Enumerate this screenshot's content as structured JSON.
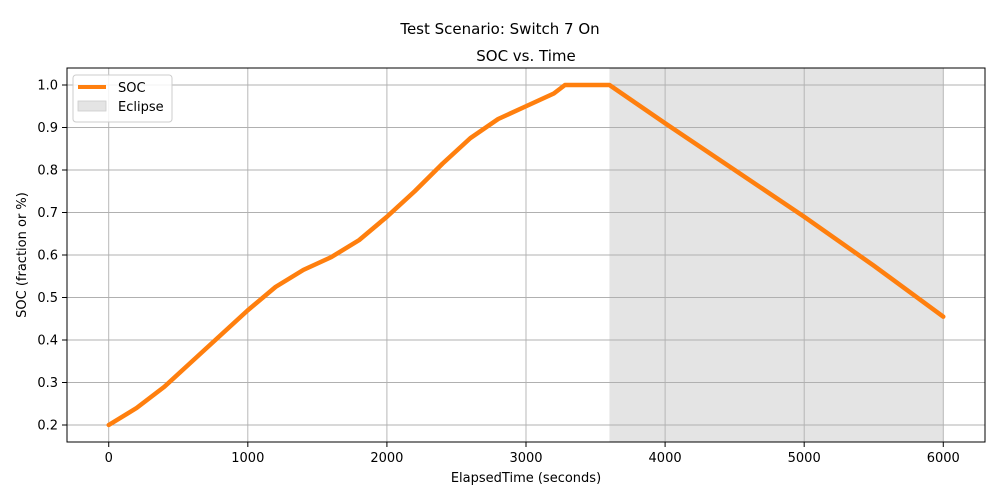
{
  "suptitle": "Test Scenario: Switch 7 On",
  "chart_data": {
    "type": "line",
    "title": "SOC vs. Time",
    "xlabel": "ElapsedTime (seconds)",
    "ylabel": "SOC (fraction or %)",
    "xlim": [
      -300,
      6300
    ],
    "ylim": [
      0.16,
      1.04
    ],
    "xticks": [
      0,
      1000,
      2000,
      3000,
      4000,
      5000,
      6000
    ],
    "yticks": [
      0.2,
      0.3,
      0.4,
      0.5,
      0.6,
      0.7,
      0.8,
      0.9,
      1.0
    ],
    "xtick_labels": [
      "0",
      "1000",
      "2000",
      "3000",
      "4000",
      "5000",
      "6000"
    ],
    "ytick_labels": [
      "0.2",
      "0.3",
      "0.4",
      "0.5",
      "0.6",
      "0.7",
      "0.8",
      "0.9",
      "1.0"
    ],
    "grid": true,
    "legend_position": "top-left",
    "legend": [
      "SOC",
      "Eclipse"
    ],
    "series": [
      {
        "name": "SOC",
        "color": "#ff7f0e",
        "x": [
          0,
          200,
          400,
          600,
          800,
          1000,
          1200,
          1400,
          1600,
          1800,
          2000,
          2200,
          2400,
          2600,
          2800,
          3000,
          3100,
          3200,
          3280,
          3400,
          3600,
          3800,
          4000,
          4500,
          5000,
          5500,
          6000
        ],
        "y": [
          0.2,
          0.24,
          0.29,
          0.35,
          0.41,
          0.47,
          0.525,
          0.565,
          0.595,
          0.635,
          0.69,
          0.75,
          0.815,
          0.875,
          0.92,
          0.95,
          0.965,
          0.98,
          1.0,
          1.0,
          1.0,
          0.955,
          0.91,
          0.8,
          0.69,
          0.575,
          0.455
        ]
      }
    ],
    "shaded_regions": [
      {
        "name": "Eclipse",
        "x_start": 3600,
        "x_end": 6000,
        "color": "#e4e4e4"
      }
    ]
  }
}
